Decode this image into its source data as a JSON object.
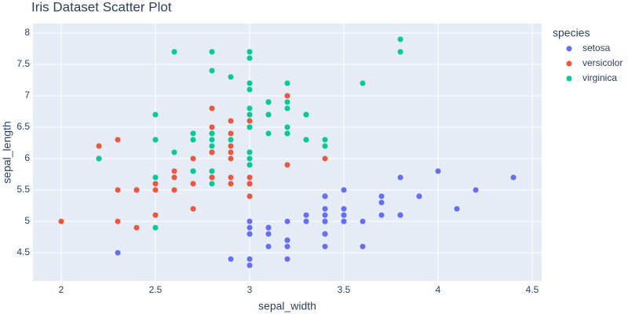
{
  "chart_data": {
    "type": "scatter",
    "title": "Iris Dataset Scatter Plot",
    "x_label": "sepal_width",
    "y_label": "sepal_length",
    "legend_title": "species",
    "xlim": [
      1.85,
      4.55
    ],
    "ylim": [
      4.05,
      8.15
    ],
    "xticks": [
      2,
      2.5,
      3,
      3.5,
      4,
      4.5
    ],
    "yticks": [
      4.5,
      5,
      5.5,
      6,
      6.5,
      7,
      7.5,
      8
    ],
    "grid": true,
    "legend_position": "right",
    "series": [
      {
        "name": "setosa",
        "color": "#636efa",
        "x": [
          3.5,
          3.0,
          3.2,
          3.1,
          3.6,
          3.9,
          3.4,
          3.4,
          2.9,
          3.1,
          3.7,
          3.4,
          3.0,
          3.0,
          4.0,
          4.4,
          3.9,
          3.5,
          3.8,
          3.8,
          3.4,
          3.7,
          3.6,
          3.3,
          3.4,
          3.0,
          3.4,
          3.5,
          3.4,
          3.2,
          3.1,
          3.4,
          4.1,
          4.2,
          3.1,
          3.2,
          3.5,
          3.1,
          3.0,
          3.4,
          3.5,
          2.3,
          3.2,
          3.5,
          3.8,
          3.0,
          3.8,
          3.2,
          3.7,
          3.3
        ],
        "y": [
          5.1,
          4.9,
          4.7,
          4.6,
          5.0,
          5.4,
          4.6,
          5.0,
          4.4,
          4.9,
          5.4,
          4.8,
          4.8,
          4.3,
          5.8,
          5.7,
          5.4,
          5.1,
          5.7,
          5.1,
          5.4,
          5.1,
          4.6,
          5.1,
          4.8,
          5.0,
          5.0,
          5.2,
          5.2,
          4.7,
          4.8,
          5.4,
          5.2,
          5.5,
          4.9,
          5.0,
          5.5,
          4.9,
          4.4,
          5.1,
          5.0,
          4.5,
          4.4,
          5.0,
          5.1,
          4.8,
          5.1,
          4.6,
          5.3,
          5.0
        ]
      },
      {
        "name": "versicolor",
        "color": "#ef553b",
        "x": [
          3.2,
          3.2,
          3.1,
          2.3,
          2.8,
          2.8,
          3.3,
          2.4,
          2.9,
          2.7,
          2.0,
          3.0,
          2.2,
          2.9,
          2.9,
          3.1,
          3.0,
          2.7,
          2.2,
          2.5,
          3.2,
          2.8,
          2.5,
          2.8,
          2.9,
          3.0,
          2.8,
          3.0,
          2.9,
          2.6,
          2.4,
          2.4,
          2.7,
          2.7,
          3.0,
          3.4,
          3.1,
          2.3,
          3.0,
          2.5,
          2.6,
          3.0,
          2.6,
          2.3,
          2.7,
          3.0,
          2.9,
          2.9,
          2.5,
          2.8
        ],
        "y": [
          7.0,
          6.4,
          6.9,
          5.5,
          6.5,
          5.7,
          6.3,
          4.9,
          6.6,
          5.2,
          5.0,
          5.9,
          6.0,
          6.1,
          5.6,
          6.7,
          5.6,
          5.8,
          6.2,
          5.6,
          5.9,
          6.1,
          6.3,
          6.1,
          6.4,
          6.6,
          6.8,
          6.7,
          6.0,
          5.7,
          5.5,
          5.5,
          5.8,
          6.0,
          5.4,
          6.0,
          6.7,
          6.3,
          5.6,
          5.5,
          5.5,
          6.1,
          5.8,
          5.0,
          5.6,
          5.7,
          5.7,
          6.2,
          5.1,
          5.7
        ]
      },
      {
        "name": "virginica",
        "color": "#00cc96",
        "x": [
          3.3,
          2.7,
          3.0,
          2.9,
          3.0,
          3.0,
          2.5,
          2.9,
          2.5,
          3.6,
          3.2,
          2.7,
          3.0,
          2.5,
          2.8,
          3.2,
          3.0,
          3.8,
          2.6,
          2.2,
          3.2,
          2.8,
          2.8,
          2.7,
          3.3,
          3.2,
          2.8,
          3.0,
          2.8,
          3.0,
          2.8,
          3.8,
          2.8,
          2.8,
          2.6,
          3.0,
          3.4,
          3.1,
          3.0,
          3.1,
          3.1,
          3.1,
          2.7,
          3.2,
          3.3,
          3.0,
          2.5,
          3.0,
          3.4,
          3.0
        ],
        "y": [
          6.3,
          5.8,
          7.1,
          6.3,
          6.5,
          7.6,
          4.9,
          7.3,
          6.7,
          7.2,
          6.5,
          6.4,
          6.8,
          5.7,
          5.8,
          6.4,
          6.5,
          7.7,
          7.7,
          6.0,
          6.9,
          5.6,
          7.7,
          6.3,
          6.7,
          7.2,
          6.2,
          6.1,
          6.4,
          7.2,
          7.4,
          7.9,
          6.4,
          6.3,
          6.1,
          7.7,
          6.3,
          6.4,
          6.0,
          6.9,
          6.7,
          6.9,
          5.8,
          6.8,
          6.7,
          6.7,
          6.3,
          6.5,
          6.2,
          5.9
        ]
      }
    ]
  }
}
